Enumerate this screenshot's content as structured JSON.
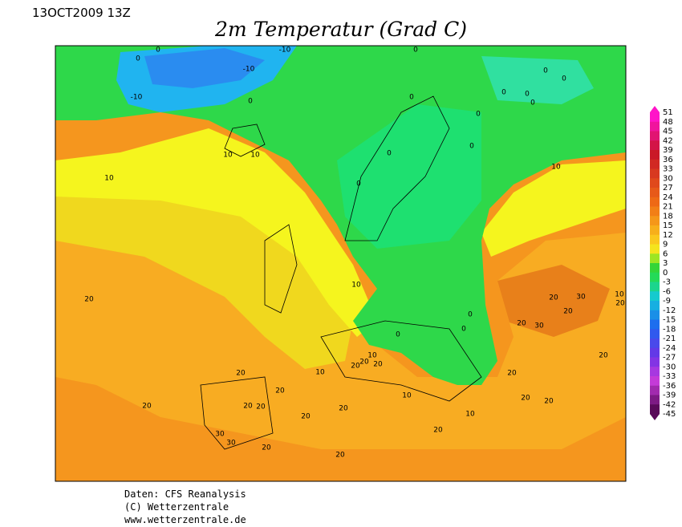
{
  "header": {
    "date": "13OCT2009 13Z",
    "title": "2m Temperatur (Grad C)"
  },
  "colorbar": {
    "labels": [
      51,
      48,
      45,
      42,
      39,
      36,
      33,
      30,
      27,
      24,
      21,
      18,
      15,
      12,
      9,
      6,
      3,
      0,
      -3,
      -6,
      -9,
      -12,
      -15,
      -18,
      -21,
      -24,
      -27,
      -30,
      -33,
      -36,
      -39,
      -42,
      -45
    ]
  },
  "map": {
    "contour_labels": [
      0,
      0,
      -10,
      -10,
      -10,
      0,
      0,
      0,
      0,
      0,
      0,
      0,
      0,
      0,
      0,
      0,
      0,
      10,
      10,
      10,
      10,
      10,
      20,
      0,
      0,
      0,
      20,
      20,
      30,
      20,
      30,
      10,
      20,
      20,
      10,
      20,
      20,
      10,
      20,
      20,
      20,
      20,
      20,
      20,
      20,
      10,
      20,
      20,
      20,
      20,
      10,
      20,
      30,
      30,
      20,
      20
    ]
  },
  "footer": {
    "lines": [
      "Daten: CFS Reanalysis",
      "(C) Wetterzentrale",
      "www.wetterzentrale.de"
    ]
  }
}
